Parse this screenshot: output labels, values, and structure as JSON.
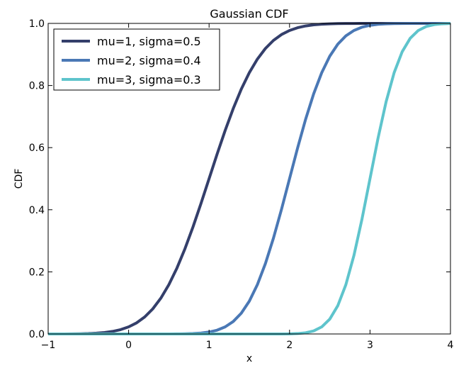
{
  "chart_data": {
    "type": "line",
    "title": "Gaussian CDF",
    "xlabel": "x",
    "ylabel": "CDF",
    "xlim": [
      -1,
      4
    ],
    "ylim": [
      0.0,
      1.0
    ],
    "x_ticks": [
      "−1",
      "0",
      "1",
      "2",
      "3",
      "4"
    ],
    "y_ticks": [
      "0.0",
      "0.2",
      "0.4",
      "0.6",
      "0.8",
      "1.0"
    ],
    "grid": false,
    "legend_position": "top-left",
    "x": [
      -1.0,
      -0.9,
      -0.8,
      -0.7,
      -0.6,
      -0.5,
      -0.4,
      -0.3,
      -0.2,
      -0.1,
      0.0,
      0.1,
      0.2,
      0.3,
      0.4,
      0.5,
      0.6,
      0.7,
      0.8,
      0.9,
      1.0,
      1.1,
      1.2,
      1.3,
      1.4,
      1.5,
      1.6,
      1.7,
      1.8,
      1.9,
      2.0,
      2.1,
      2.2,
      2.3,
      2.4,
      2.5,
      2.6,
      2.7,
      2.8,
      2.9,
      3.0,
      3.1,
      3.2,
      3.3,
      3.4,
      3.5,
      3.6,
      3.7,
      3.8,
      3.9,
      4.0
    ],
    "series": [
      {
        "name": "mu=1, sigma=0.5",
        "color": "#343f6b",
        "values": [
          0.0,
          0.0,
          0.0,
          0.0003,
          0.0007,
          0.0013,
          0.0026,
          0.0047,
          0.0082,
          0.0139,
          0.0228,
          0.0359,
          0.0548,
          0.0808,
          0.1151,
          0.1587,
          0.2119,
          0.2743,
          0.3446,
          0.4207,
          0.5,
          0.5793,
          0.6554,
          0.7257,
          0.7881,
          0.8413,
          0.8849,
          0.9192,
          0.9452,
          0.9641,
          0.9772,
          0.9861,
          0.9918,
          0.9953,
          0.9974,
          0.9987,
          0.9993,
          0.9997,
          0.9998,
          0.9999,
          1.0,
          1.0,
          1.0,
          1.0,
          1.0,
          1.0,
          1.0,
          1.0,
          1.0,
          1.0,
          1.0
        ]
      },
      {
        "name": "mu=2, sigma=0.4",
        "color": "#4a78b5",
        "values": [
          0.0,
          0.0,
          0.0,
          0.0,
          0.0,
          0.0,
          0.0,
          0.0,
          0.0,
          0.0,
          0.0,
          0.0,
          0.0,
          0.0,
          0.0,
          0.0001,
          0.0002,
          0.0006,
          0.0013,
          0.003,
          0.0062,
          0.0122,
          0.0228,
          0.0401,
          0.0668,
          0.1056,
          0.1587,
          0.2266,
          0.3085,
          0.4013,
          0.5,
          0.5987,
          0.6915,
          0.7734,
          0.8413,
          0.8944,
          0.9332,
          0.9599,
          0.9772,
          0.9878,
          0.9938,
          0.997,
          0.9987,
          0.9994,
          0.9998,
          0.9999,
          1.0,
          1.0,
          1.0,
          1.0,
          1.0
        ]
      },
      {
        "name": "mu=3, sigma=0.3",
        "color": "#5ec4cc",
        "values": [
          0.0,
          0.0,
          0.0,
          0.0,
          0.0,
          0.0,
          0.0,
          0.0,
          0.0,
          0.0,
          0.0,
          0.0,
          0.0,
          0.0,
          0.0,
          0.0,
          0.0,
          0.0,
          0.0,
          0.0,
          0.0,
          0.0,
          0.0,
          0.0,
          0.0,
          0.0,
          0.0,
          0.0,
          0.0,
          0.0,
          0.0004,
          0.0013,
          0.0038,
          0.0098,
          0.0228,
          0.0478,
          0.0912,
          0.1587,
          0.2525,
          0.3694,
          0.5,
          0.6306,
          0.7475,
          0.8413,
          0.9088,
          0.9522,
          0.9772,
          0.9902,
          0.9962,
          0.9987,
          0.9996
        ]
      }
    ]
  }
}
